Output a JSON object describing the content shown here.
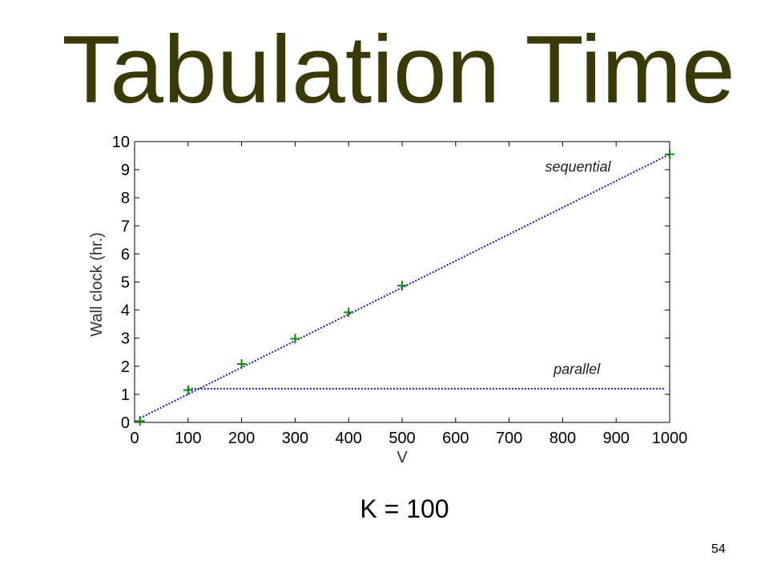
{
  "slide": {
    "title": "Tabulation Time",
    "subtitle": "K = 100",
    "page_number": "54"
  },
  "chart_data": {
    "type": "line",
    "xlabel": "V",
    "ylabel": "Wall clock (hr.)",
    "xlim": [
      0,
      1000
    ],
    "ylim": [
      0,
      10
    ],
    "xticks": [
      0,
      100,
      200,
      300,
      400,
      500,
      600,
      700,
      800,
      900,
      1000
    ],
    "yticks": [
      0,
      1,
      2,
      3,
      4,
      5,
      6,
      7,
      8,
      9,
      10
    ],
    "grid": false,
    "series": [
      {
        "name": "sequential",
        "style": "dotted-line",
        "color": "#1a1ab0",
        "x": [
          10,
          1000
        ],
        "y": [
          0.15,
          9.55
        ]
      },
      {
        "name": "parallel",
        "style": "dotted-line",
        "color": "#1a1ab0",
        "x": [
          100,
          990
        ],
        "y": [
          1.2,
          1.2
        ]
      },
      {
        "name": "",
        "style": "plus-markers",
        "color": "#118811",
        "x": [
          10,
          100,
          200,
          300,
          400,
          500,
          1000
        ],
        "y": [
          0.05,
          1.15,
          2.08,
          2.98,
          3.92,
          4.87,
          9.55
        ]
      }
    ],
    "annotations": [
      {
        "text": "sequential",
        "x": 890,
        "y": 9.1
      },
      {
        "text": "parallel",
        "x": 870,
        "y": 1.9
      }
    ]
  }
}
